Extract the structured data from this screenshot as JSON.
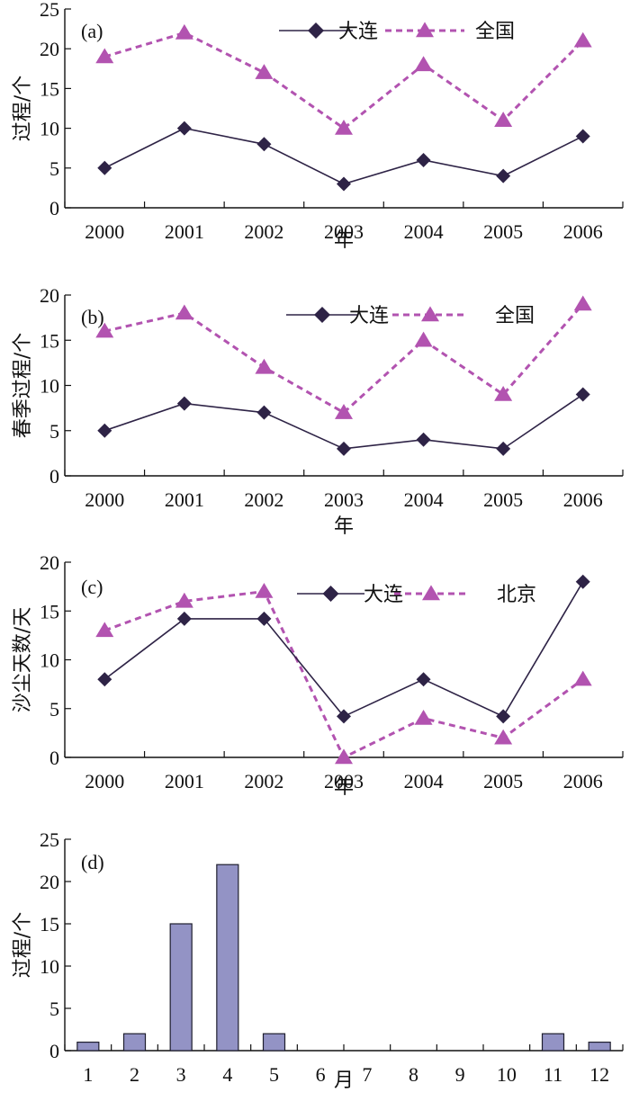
{
  "colors": {
    "dalian": "#2e2346",
    "other": "#b253b0",
    "bar_fill": "#9393c5",
    "bar_stroke": "#1e1e2e",
    "axis": "#111111"
  },
  "chart_data": [
    {
      "type": "line",
      "panel": "(a)",
      "categories": [
        "2000",
        "2001",
        "2002",
        "2003",
        "2004",
        "2005",
        "2006"
      ],
      "series": [
        {
          "name": "大连",
          "values": [
            5,
            10,
            8,
            3,
            6,
            4,
            9
          ]
        },
        {
          "name": "全国",
          "values": [
            19,
            22,
            17,
            10,
            18,
            11,
            21
          ]
        }
      ],
      "xlabel": "年",
      "ylabel": "过程/个",
      "ylim": [
        0,
        25
      ],
      "yticks": [
        "0",
        "5",
        "10",
        "15",
        "20",
        "25"
      ],
      "legend": "top-right"
    },
    {
      "type": "line",
      "panel": "(b)",
      "categories": [
        "2000",
        "2001",
        "2002",
        "2003",
        "2004",
        "2005",
        "2006"
      ],
      "series": [
        {
          "name": "大连",
          "values": [
            5,
            8,
            7,
            3,
            4,
            3,
            9
          ]
        },
        {
          "name": "全国",
          "values": [
            16,
            18,
            12,
            7,
            15,
            9,
            19
          ]
        }
      ],
      "xlabel": "年",
      "ylabel": "春季过程/个",
      "ylim": [
        0,
        20
      ],
      "yticks": [
        "0",
        "5",
        "10",
        "15",
        "20"
      ],
      "legend": "top-right"
    },
    {
      "type": "line",
      "panel": "(c)",
      "categories": [
        "2000",
        "2001",
        "2002",
        "2003",
        "2004",
        "2005",
        "2006"
      ],
      "series": [
        {
          "name": "大连",
          "values": [
            8,
            14.2,
            14.2,
            4.2,
            8,
            4.2,
            18
          ]
        },
        {
          "name": "北京",
          "values": [
            13,
            16,
            17,
            0,
            4,
            2,
            8
          ]
        }
      ],
      "xlabel": "年",
      "ylabel": "沙尘天数/天",
      "ylim": [
        0,
        20
      ],
      "yticks": [
        "0",
        "5",
        "10",
        "15",
        "20"
      ],
      "legend": "top-right"
    },
    {
      "type": "bar",
      "panel": "(d)",
      "categories": [
        "1",
        "2",
        "3",
        "4",
        "5",
        "6",
        "7",
        "8",
        "9",
        "10",
        "11",
        "12"
      ],
      "values": [
        1,
        2,
        15,
        22,
        2,
        0,
        0,
        0,
        0,
        0,
        2,
        1
      ],
      "xlabel": "月",
      "ylabel": "过程/个",
      "ylim": [
        0,
        25
      ],
      "yticks": [
        "0",
        "5",
        "10",
        "15",
        "20",
        "25"
      ]
    }
  ]
}
